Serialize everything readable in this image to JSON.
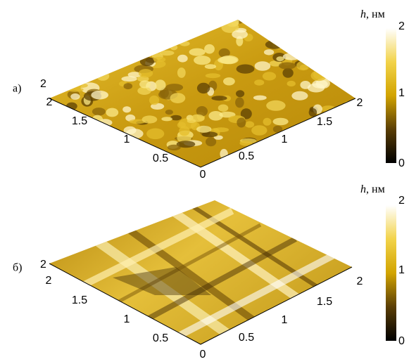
{
  "panels": [
    {
      "label": "а)",
      "left_axis_ticks": [
        "2",
        "1.5",
        "1",
        "0.5",
        "0"
      ],
      "right_axis_ticks": [
        "0.5",
        "1",
        "1.5",
        "2"
      ],
      "z_tick": "2",
      "colorbar": {
        "label_symbol": "h",
        "label_unit": ", нм",
        "ticks": [
          "2",
          "1",
          "0"
        ]
      }
    },
    {
      "label": "б)",
      "left_axis_ticks": [
        "2",
        "1.5",
        "1",
        "0.5",
        "0"
      ],
      "right_axis_ticks": [
        "0.5",
        "1",
        "1.5",
        "2"
      ],
      "z_tick": "2",
      "colorbar": {
        "label_symbol": "h",
        "label_unit": ", нм",
        "ticks": [
          "2",
          "1",
          "0"
        ]
      }
    }
  ]
}
